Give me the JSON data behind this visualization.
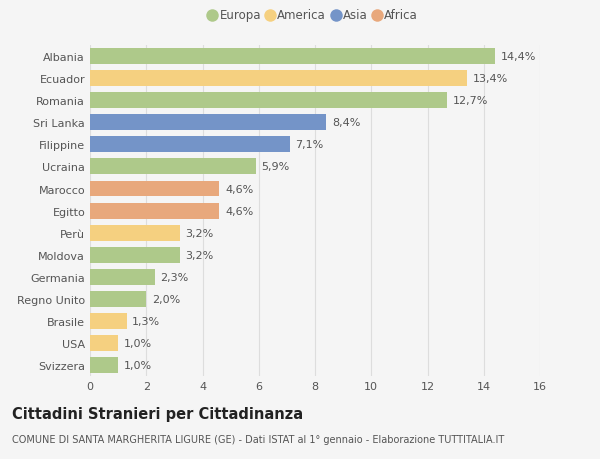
{
  "categories": [
    "Albania",
    "Ecuador",
    "Romania",
    "Sri Lanka",
    "Filippine",
    "Ucraina",
    "Marocco",
    "Egitto",
    "Perù",
    "Moldova",
    "Germania",
    "Regno Unito",
    "Brasile",
    "USA",
    "Svizzera"
  ],
  "values": [
    14.4,
    13.4,
    12.7,
    8.4,
    7.1,
    5.9,
    4.6,
    4.6,
    3.2,
    3.2,
    2.3,
    2.0,
    1.3,
    1.0,
    1.0
  ],
  "labels": [
    "14,4%",
    "13,4%",
    "12,7%",
    "8,4%",
    "7,1%",
    "5,9%",
    "4,6%",
    "4,6%",
    "3,2%",
    "3,2%",
    "2,3%",
    "2,0%",
    "1,3%",
    "1,0%",
    "1,0%"
  ],
  "continents": [
    "Europa",
    "America",
    "Europa",
    "Asia",
    "Asia",
    "Europa",
    "Africa",
    "Africa",
    "America",
    "Europa",
    "Europa",
    "Europa",
    "America",
    "America",
    "Europa"
  ],
  "colors": {
    "Europa": "#aec98a",
    "America": "#f5d080",
    "Asia": "#7494c8",
    "Africa": "#e8a87c"
  },
  "legend_order": [
    "Europa",
    "America",
    "Asia",
    "Africa"
  ],
  "xlim": [
    0,
    16
  ],
  "xticks": [
    0,
    2,
    4,
    6,
    8,
    10,
    12,
    14,
    16
  ],
  "title": "Cittadini Stranieri per Cittadinanza",
  "subtitle": "COMUNE DI SANTA MARGHERITA LIGURE (GE) - Dati ISTAT al 1° gennaio - Elaborazione TUTTITALIA.IT",
  "background_color": "#f5f5f5",
  "grid_color": "#dddddd",
  "bar_height": 0.72,
  "label_fontsize": 8,
  "title_fontsize": 10.5,
  "subtitle_fontsize": 7,
  "tick_fontsize": 8,
  "legend_fontsize": 8.5,
  "text_color": "#555555",
  "title_color": "#222222"
}
